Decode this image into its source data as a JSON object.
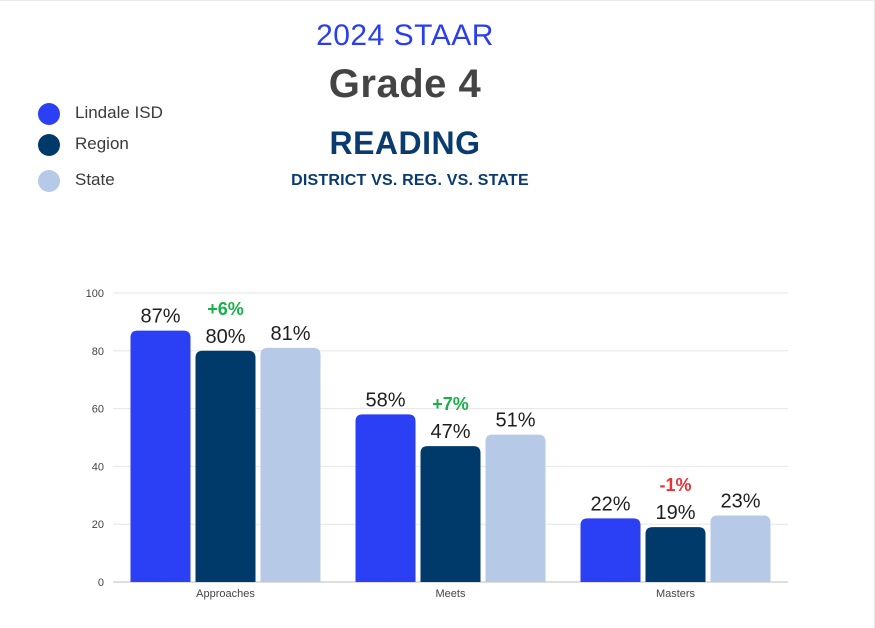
{
  "header": {
    "year": "2024 STAAR",
    "grade": "Grade 4",
    "subject": "READING",
    "subtitle": "DISTRICT VS. REG. VS. STATE"
  },
  "colors": {
    "lindale": "#2b3ff5",
    "region": "#003a6b",
    "state": "#b6c9e6",
    "positive": "#18b04a",
    "negative": "#e8323a"
  },
  "chart_data": {
    "type": "bar",
    "categories": [
      "Approaches",
      "Meets",
      "Masters"
    ],
    "series": [
      {
        "name": "Lindale ISD",
        "values": [
          87,
          58,
          22
        ],
        "labels": [
          "87%",
          "58%",
          "22%"
        ]
      },
      {
        "name": "Region",
        "values": [
          80,
          47,
          19
        ],
        "labels": [
          "80%",
          "47%",
          "19%"
        ]
      },
      {
        "name": "State",
        "values": [
          81,
          51,
          23
        ],
        "labels": [
          "81%",
          "51%",
          "23%"
        ]
      }
    ],
    "differences": [
      "+6%",
      "+7%",
      "-1%"
    ],
    "difference_signs": [
      "positive",
      "positive",
      "negative"
    ],
    "yticks": [
      "0",
      "20",
      "40",
      "60",
      "80",
      "100"
    ],
    "ylim": [
      0,
      100
    ],
    "grid": true,
    "legend_position": "top-left"
  }
}
